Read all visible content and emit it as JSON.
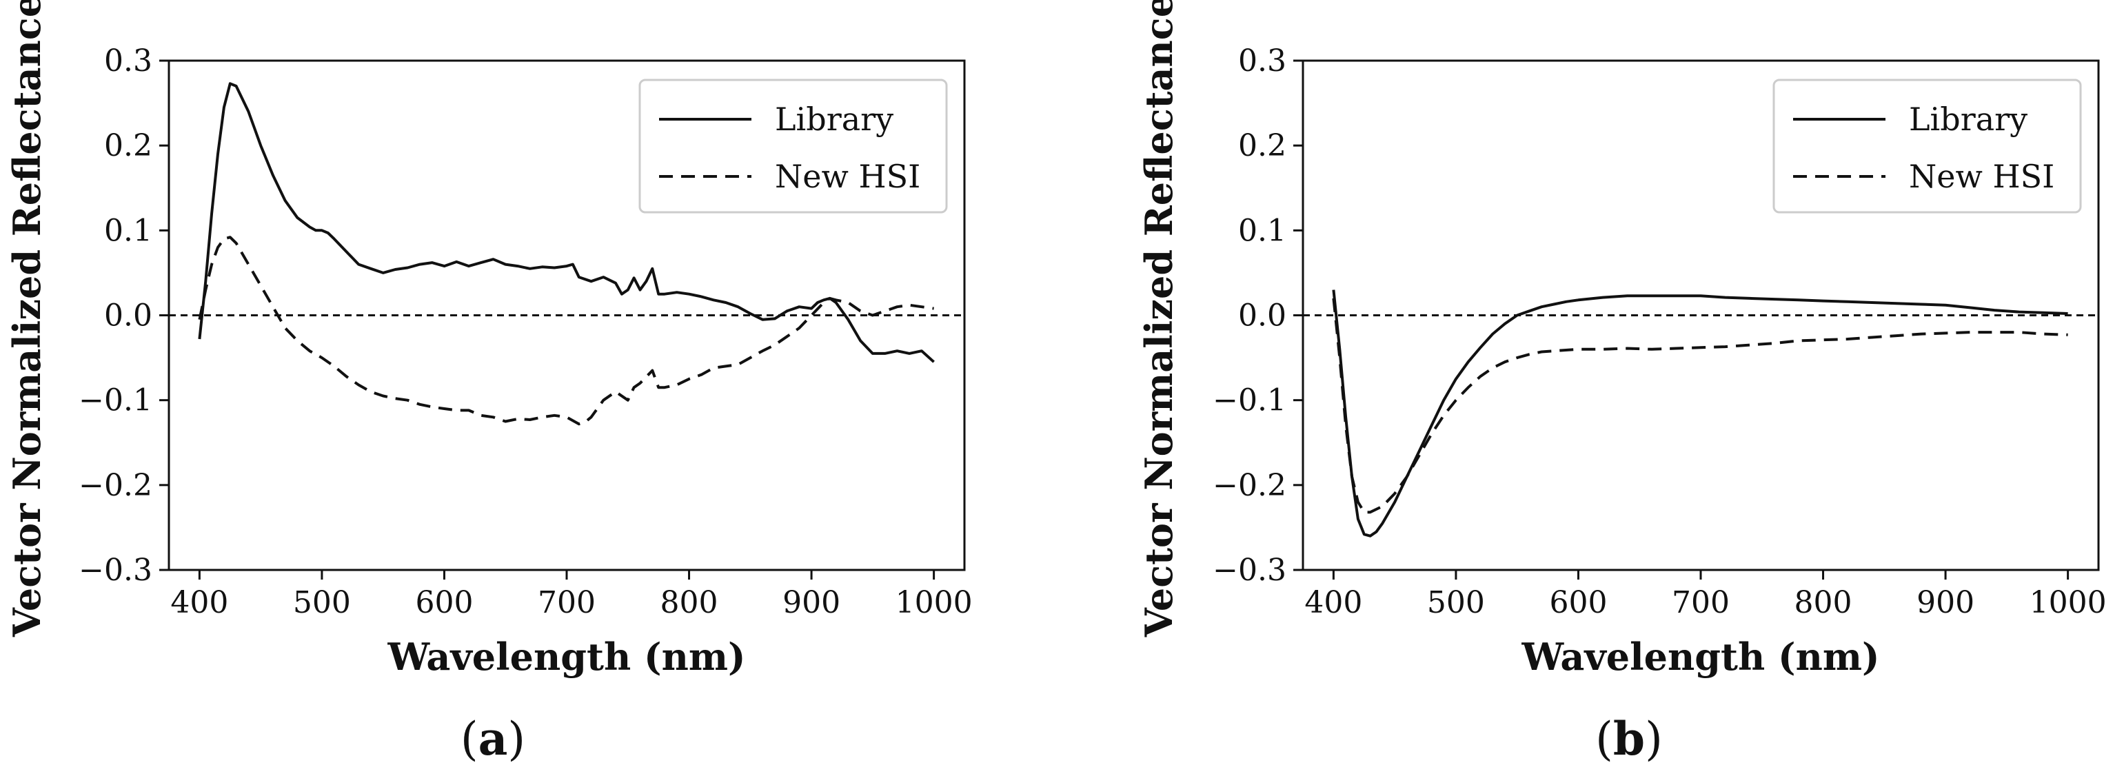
{
  "chart_data": [
    {
      "type": "line",
      "panel_label": "a",
      "xlabel": "Wavelength (nm)",
      "ylabel": "Vector Normalized Reflectance",
      "xlim": [
        375,
        1025
      ],
      "ylim": [
        -0.3,
        0.3
      ],
      "xticks": [
        "400",
        "500",
        "600",
        "700",
        "800",
        "900",
        "1000"
      ],
      "yticks": [
        "0.3",
        "0.2",
        "0.1",
        "0.0",
        "−0.1",
        "−0.2",
        "−0.3"
      ],
      "reference_line_y": 0.0,
      "legend": {
        "position": "top-right",
        "entries": [
          "Library",
          "New HSI"
        ]
      },
      "series": [
        {
          "name": "Library",
          "line_style": "solid",
          "x": [
            400,
            405,
            410,
            415,
            420,
            425,
            430,
            435,
            440,
            445,
            450,
            460,
            470,
            480,
            490,
            495,
            500,
            505,
            510,
            520,
            530,
            540,
            550,
            560,
            570,
            580,
            590,
            600,
            610,
            620,
            630,
            640,
            650,
            660,
            670,
            680,
            690,
            700,
            705,
            710,
            720,
            730,
            740,
            745,
            750,
            755,
            760,
            765,
            770,
            775,
            780,
            790,
            800,
            810,
            820,
            830,
            840,
            850,
            860,
            870,
            880,
            890,
            900,
            905,
            910,
            915,
            920,
            930,
            940,
            950,
            960,
            970,
            980,
            990,
            1000
          ],
          "y": [
            -0.028,
            0.04,
            0.12,
            0.19,
            0.245,
            0.273,
            0.27,
            0.255,
            0.24,
            0.22,
            0.2,
            0.165,
            0.135,
            0.115,
            0.104,
            0.1,
            0.1,
            0.097,
            0.09,
            0.075,
            0.06,
            0.055,
            0.05,
            0.054,
            0.056,
            0.06,
            0.062,
            0.058,
            0.063,
            0.058,
            0.062,
            0.066,
            0.06,
            0.058,
            0.055,
            0.057,
            0.056,
            0.058,
            0.06,
            0.045,
            0.04,
            0.045,
            0.038,
            0.025,
            0.03,
            0.044,
            0.03,
            0.04,
            0.055,
            0.025,
            0.025,
            0.027,
            0.025,
            0.022,
            0.018,
            0.015,
            0.01,
            0.002,
            -0.005,
            -0.004,
            0.005,
            0.01,
            0.008,
            0.015,
            0.018,
            0.02,
            0.015,
            -0.005,
            -0.03,
            -0.045,
            -0.045,
            -0.042,
            -0.045,
            -0.042,
            -0.055
          ]
        },
        {
          "name": "New HSI",
          "line_style": "dashed",
          "x": [
            400,
            405,
            410,
            415,
            420,
            425,
            430,
            440,
            450,
            460,
            470,
            480,
            490,
            500,
            510,
            520,
            530,
            540,
            550,
            560,
            570,
            580,
            590,
            600,
            610,
            620,
            630,
            640,
            650,
            660,
            670,
            680,
            690,
            700,
            710,
            715,
            720,
            730,
            740,
            750,
            755,
            760,
            770,
            775,
            780,
            790,
            800,
            810,
            820,
            830,
            840,
            850,
            860,
            870,
            880,
            890,
            900,
            910,
            915,
            920,
            930,
            940,
            950,
            960,
            970,
            980,
            990,
            1000
          ],
          "y": [
            -0.005,
            0.03,
            0.06,
            0.08,
            0.09,
            0.092,
            0.085,
            0.06,
            0.035,
            0.01,
            -0.015,
            -0.03,
            -0.042,
            -0.05,
            -0.06,
            -0.072,
            -0.082,
            -0.09,
            -0.095,
            -0.098,
            -0.1,
            -0.105,
            -0.108,
            -0.11,
            -0.112,
            -0.112,
            -0.118,
            -0.12,
            -0.125,
            -0.122,
            -0.123,
            -0.12,
            -0.118,
            -0.12,
            -0.128,
            -0.126,
            -0.12,
            -0.1,
            -0.09,
            -0.1,
            -0.085,
            -0.08,
            -0.065,
            -0.085,
            -0.085,
            -0.082,
            -0.075,
            -0.07,
            -0.062,
            -0.06,
            -0.058,
            -0.05,
            -0.042,
            -0.035,
            -0.025,
            -0.015,
            0.0,
            0.015,
            0.02,
            0.018,
            0.015,
            0.005,
            0.0,
            0.005,
            0.01,
            0.012,
            0.01,
            0.008
          ]
        }
      ]
    },
    {
      "type": "line",
      "panel_label": "b",
      "xlabel": "Wavelength (nm)",
      "ylabel": "Vector Normalized Reflectance",
      "xlim": [
        375,
        1025
      ],
      "ylim": [
        -0.3,
        0.3
      ],
      "xticks": [
        "400",
        "500",
        "600",
        "700",
        "800",
        "900",
        "1000"
      ],
      "yticks": [
        "0.3",
        "0.2",
        "0.1",
        "0.0",
        "−0.1",
        "−0.2",
        "−0.3"
      ],
      "reference_line_y": 0.0,
      "legend": {
        "position": "top-right",
        "entries": [
          "Library",
          "New HSI"
        ]
      },
      "series": [
        {
          "name": "Library",
          "line_style": "solid",
          "x": [
            400,
            405,
            410,
            415,
            420,
            425,
            430,
            435,
            440,
            450,
            460,
            470,
            480,
            490,
            500,
            510,
            520,
            530,
            540,
            550,
            560,
            570,
            580,
            590,
            600,
            620,
            640,
            660,
            680,
            700,
            720,
            740,
            760,
            780,
            800,
            820,
            840,
            860,
            880,
            900,
            920,
            940,
            960,
            980,
            1000
          ],
          "y": [
            0.03,
            -0.04,
            -0.12,
            -0.19,
            -0.24,
            -0.258,
            -0.26,
            -0.255,
            -0.245,
            -0.22,
            -0.19,
            -0.16,
            -0.13,
            -0.1,
            -0.075,
            -0.055,
            -0.038,
            -0.022,
            -0.01,
            0.0,
            0.005,
            0.01,
            0.013,
            0.016,
            0.018,
            0.021,
            0.023,
            0.023,
            0.023,
            0.023,
            0.021,
            0.02,
            0.019,
            0.018,
            0.017,
            0.016,
            0.015,
            0.014,
            0.013,
            0.012,
            0.009,
            0.006,
            0.004,
            0.003,
            0.002
          ]
        },
        {
          "name": "New HSI",
          "line_style": "dashed",
          "x": [
            400,
            405,
            410,
            415,
            420,
            425,
            430,
            440,
            450,
            460,
            470,
            480,
            490,
            500,
            510,
            520,
            530,
            540,
            550,
            560,
            570,
            580,
            600,
            620,
            640,
            660,
            680,
            700,
            720,
            740,
            760,
            780,
            800,
            820,
            840,
            860,
            880,
            900,
            920,
            940,
            960,
            980,
            1000
          ],
          "y": [
            0.02,
            -0.05,
            -0.13,
            -0.19,
            -0.22,
            -0.232,
            -0.232,
            -0.225,
            -0.21,
            -0.19,
            -0.165,
            -0.14,
            -0.118,
            -0.1,
            -0.085,
            -0.072,
            -0.062,
            -0.055,
            -0.05,
            -0.046,
            -0.043,
            -0.042,
            -0.04,
            -0.04,
            -0.039,
            -0.04,
            -0.039,
            -0.038,
            -0.037,
            -0.035,
            -0.033,
            -0.03,
            -0.029,
            -0.028,
            -0.026,
            -0.024,
            -0.022,
            -0.021,
            -0.02,
            -0.02,
            -0.02,
            -0.022,
            -0.023
          ]
        }
      ]
    }
  ]
}
